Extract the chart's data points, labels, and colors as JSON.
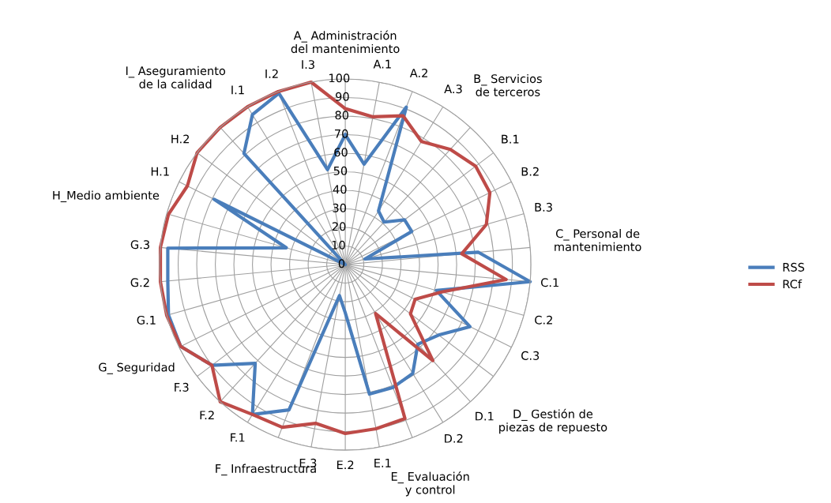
{
  "chart_data": {
    "type": "radar",
    "categories": [
      "A_ Administración del mantenimiento",
      "A.1",
      "A.2",
      "A.3",
      "B_ Servicios de terceros",
      "B.1",
      "B.2",
      "B.3",
      "C_ Personal de mantenimiento",
      "C.1",
      "C.2",
      "C.3",
      "D_ Gestión de piezas de repuesto",
      "D.1",
      "D.2",
      "E_ Evaluación y control",
      "E.1",
      "E.2",
      "E.3",
      "F_ Infraestructura",
      "F.1",
      "F.2",
      "F.3",
      "G_ Seguridad",
      "G.1",
      "G.2",
      "G.3",
      "H_Medio ambiente",
      "H.1",
      "H.2",
      "I_ Aseguramiento de la calidad",
      "I.1",
      "I.2",
      "I.3"
    ],
    "series": [
      {
        "name": "RSS",
        "color": "#4a7ebb",
        "values": [
          70,
          55,
          91,
          34,
          31,
          40,
          40,
          11,
          72,
          100,
          51,
          75,
          63,
          58,
          69,
          71,
          71,
          26,
          17,
          84,
          95,
          72,
          90,
          99,
          99,
          96,
          96,
          33,
          79,
          0,
          81,
          95,
          99,
          52
        ]
      },
      {
        "name": "RCf",
        "color": "#be4b48",
        "values": [
          84,
          81,
          86,
          78,
          84,
          88,
          87,
          79,
          63,
          87,
          54,
          42,
          44,
          70,
          31,
          89,
          90,
          91,
          87,
          94,
          95,
          100,
          90,
          99,
          100,
          100,
          100,
          99,
          95,
          100,
          100,
          100,
          100,
          100
        ]
      }
    ],
    "ylim": [
      0,
      100
    ],
    "yticks": [
      0,
      10,
      20,
      30,
      40,
      50,
      60,
      70,
      80,
      90,
      100
    ],
    "grid": true,
    "legend": "right",
    "marker": "none",
    "line_style": "solid"
  }
}
